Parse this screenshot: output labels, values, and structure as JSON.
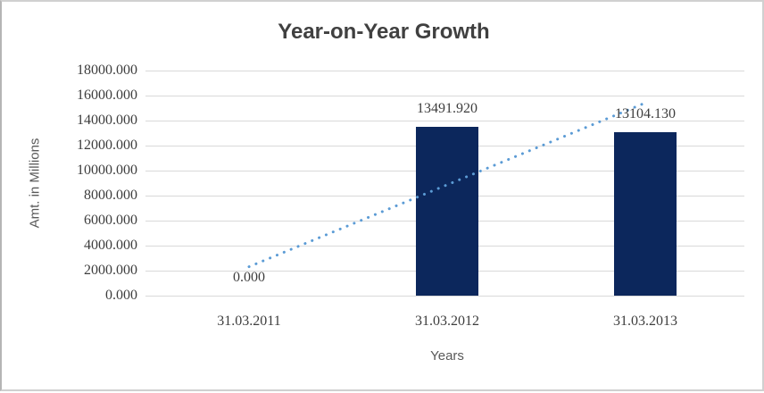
{
  "chart_data": {
    "type": "bar",
    "title": "Year-on-Year Growth",
    "categories": [
      "31.03.2011",
      "31.03.2012",
      "31.03.2013"
    ],
    "values": [
      0,
      13491.92,
      13104.13
    ],
    "value_labels": [
      "0.000",
      "13491.920",
      "13104.130"
    ],
    "xlabel": "Years",
    "ylabel": "Amt. in Millions",
    "ylim": [
      0,
      18000
    ],
    "ytick_step": 2000,
    "ytick_labels": [
      "0.000",
      "2000.000",
      "4000.000",
      "6000.000",
      "8000.000",
      "10000.000",
      "12000.000",
      "14000.000",
      "16000.000",
      "18000.000"
    ],
    "grid": true,
    "legend": "none",
    "trendline": {
      "type": "linear",
      "style": "dotted"
    },
    "colors": {
      "bar": "#0C275C",
      "trendline": "#5B9BD5",
      "gridline": "#D9D9D9",
      "title_text": "#404040",
      "label_text": "#3D3D3D",
      "axis_title_text": "#595959",
      "background": "#FFFFFF",
      "border": "#D0D0D0"
    }
  }
}
